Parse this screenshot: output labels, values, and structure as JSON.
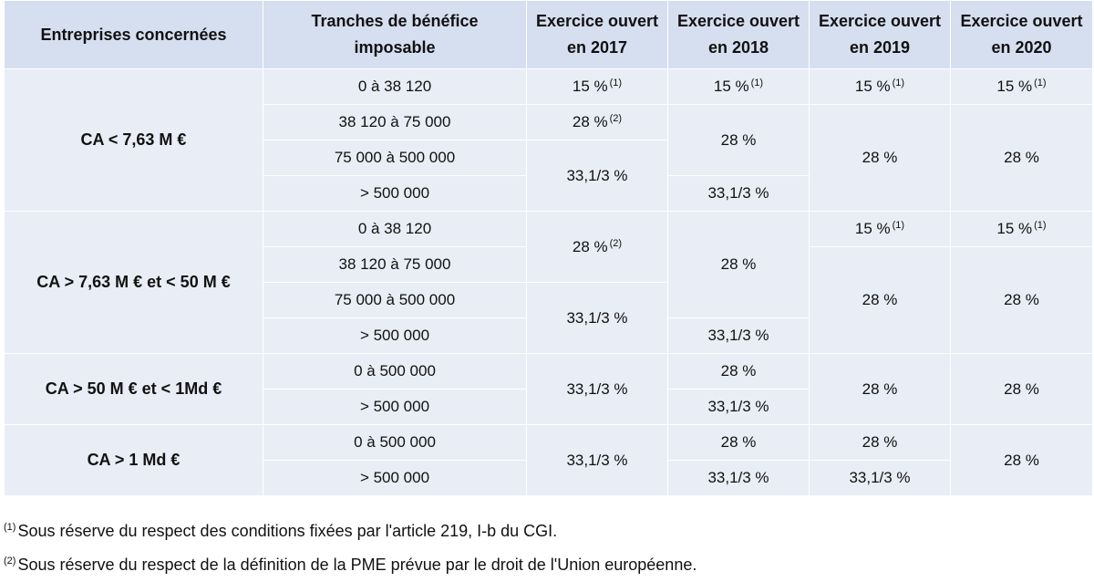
{
  "headers": {
    "col1": "Entreprises concernées",
    "col2_l1": "Tranches de bénéfice",
    "col2_l2": "imposable",
    "col3_l1": "Exercice ouvert",
    "col3_l2": "en 2017",
    "col4_l1": "Exercice ouvert",
    "col4_l2": "en 2018",
    "col5_l1": "Exercice ouvert",
    "col5_l2": "en 2019",
    "col6_l1": "Exercice ouvert",
    "col6_l2": "en 2020"
  },
  "groups": {
    "g1": {
      "label": "CA < 7,63 M €",
      "t1": "0 à 38 120",
      "t2": "38 120 à 75 000",
      "t3": "75 000 à 500 000",
      "t4": "> 500 000",
      "y2017_a": "15 %",
      "y2017_a_note": "(1)",
      "y2017_b": "28 %",
      "y2017_b_note": "(2)",
      "y2017_c": "33,1/3 %",
      "y2018_a": "15 %",
      "y2018_a_note": "(1)",
      "y2018_b": "28 %",
      "y2018_c": "33,1/3 %",
      "y2019_a": "15 %",
      "y2019_a_note": "(1)",
      "y2019_b": "28 %",
      "y2020_a": "15 %",
      "y2020_a_note": "(1)",
      "y2020_b": "28 %"
    },
    "g2": {
      "label": "CA > 7,63 M € et < 50 M €",
      "t1": "0 à 38 120",
      "t2": "38 120 à 75 000",
      "t3": "75 000 à 500 000",
      "t4": "> 500 000",
      "y2017_a": "28 %",
      "y2017_a_note": "(2)",
      "y2017_b": "33,1/3 %",
      "y2018_a": "28 %",
      "y2018_b": "33,1/3 %",
      "y2019_a": "15 %",
      "y2019_a_note": "(1)",
      "y2019_b": "28 %",
      "y2020_a": "15 %",
      "y2020_a_note": "(1)",
      "y2020_b": "28 %"
    },
    "g3": {
      "label": "CA > 50 M € et < 1Md €",
      "t1": "0 à 500 000",
      "t2": "> 500 000",
      "y2017": "33,1/3 %",
      "y2018_a": "28 %",
      "y2018_b": "33,1/3 %",
      "y2019": "28 %",
      "y2020": "28 %"
    },
    "g4": {
      "label": "CA > 1 Md €",
      "t1": "0 à 500 000",
      "t2": "> 500 000",
      "y2017": "33,1/3 %",
      "y2018_a": "28 %",
      "y2018_b": "33,1/3 %",
      "y2019_a": "28 %",
      "y2019_b": "33,1/3 %",
      "y2020": "28 %"
    }
  },
  "footnotes": {
    "n1_mark": "(1)",
    "n1_text": "Sous réserve du respect des conditions fixées par l'article 219, I-b du CGI.",
    "n2_mark": "(2)",
    "n2_text": "Sous réserve du respect de la définition de la PME prévue par le droit de l'Union européenne."
  }
}
